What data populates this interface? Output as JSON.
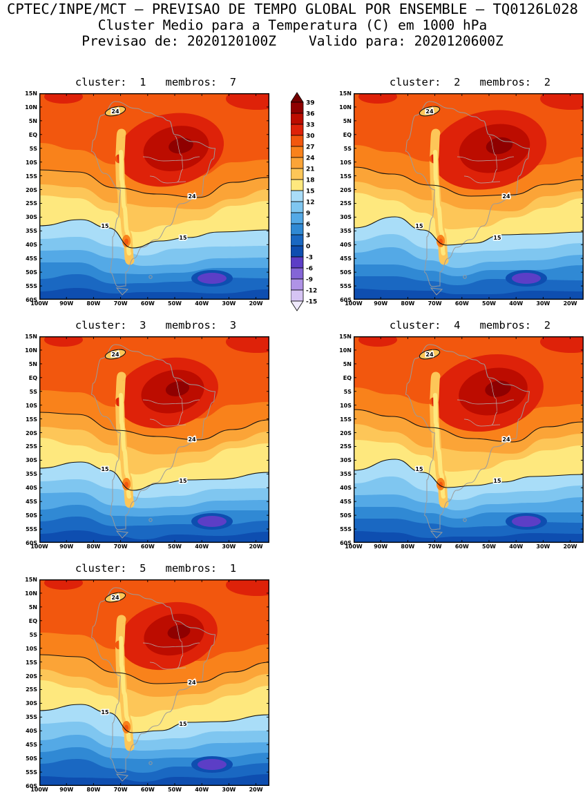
{
  "header": {
    "line1": "CPTEC/INPE/MCT — PREVISAO DE TEMPO GLOBAL POR ENSEMBLE — TQ0126L028",
    "line2": "Cluster Medio para a Temperatura (C) em 1000 hPa",
    "line3": "Previsao de: 2020120100Z    Valido para: 2020120600Z"
  },
  "panels": [
    {
      "title": "cluster:  1   membros:  7",
      "cluster": 1,
      "membros": 7
    },
    {
      "title": "cluster:  2   membros:  2",
      "cluster": 2,
      "membros": 2
    },
    {
      "title": "cluster:  3   membros:  3",
      "cluster": 3,
      "membros": 3
    },
    {
      "title": "cluster:  4   membros:  2",
      "cluster": 4,
      "membros": 2
    },
    {
      "title": "cluster:  5   membros:  1",
      "cluster": 5,
      "membros": 1
    }
  ],
  "axes": {
    "lat_ticks": [
      "15N",
      "10N",
      "5N",
      "EQ",
      "5S",
      "10S",
      "15S",
      "20S",
      "25S",
      "30S",
      "35S",
      "40S",
      "45S",
      "50S",
      "55S",
      "60S"
    ],
    "lon_ticks": [
      "100W",
      "90W",
      "80W",
      "70W",
      "60W",
      "50W",
      "40W",
      "30W",
      "20W"
    ]
  },
  "colorbar": {
    "levels": [
      "39",
      "36",
      "33",
      "30",
      "27",
      "24",
      "21",
      "18",
      "15",
      "12",
      "9",
      "6",
      "3",
      "0",
      "-3",
      "-6",
      "-9",
      "-12",
      "-15"
    ],
    "band_names": [
      "36-39",
      "33-36",
      "30-33",
      "27-30",
      "24-27",
      "21-24",
      "18-21",
      "15-18",
      "12-15",
      "9-12",
      "6-9",
      "3-6",
      "0-3",
      "-3-0",
      "-6--3",
      "-9--6",
      "-12--9",
      "-15--12"
    ],
    "cell_colors": [
      "#8F0000",
      "#BC0C00",
      "#DE2209",
      "#F2570E",
      "#F9821B",
      "#FBA437",
      "#FDC658",
      "#FEE87E",
      "#A9DDF8",
      "#7FC6F0",
      "#54A9E6",
      "#3089D4",
      "#1A68C2",
      "#0E4EB0",
      "#5C3EC6",
      "#8465D6",
      "#AF93E6",
      "#D6C4F4"
    ],
    "arrow_top_color": "#730000",
    "arrow_bottom_color": "#EFE9FC",
    "unit": "C"
  },
  "map": {
    "contour_labels": [
      "24",
      "15"
    ],
    "coast_color": "#9B9B9B"
  },
  "chart_data": {
    "type": "heatmap",
    "subtype": "filled-contour-map-grid",
    "title": "Cluster Medio para a Temperatura (C) em 1000 hPa",
    "model": "CPTEC/INPE/MCT Global Ensemble TQ0126L028",
    "variable": "temperature",
    "unit": "C",
    "level_hpa": 1000,
    "init_time": "2020120100Z",
    "valid_time": "2020120600Z",
    "region": "South America",
    "lon_range": [
      "100W",
      "15W"
    ],
    "lat_range": [
      "15N",
      "60S"
    ],
    "contour_interval_c": 3,
    "color_levels_c": [
      39,
      36,
      33,
      30,
      27,
      24,
      21,
      18,
      15,
      12,
      9,
      6,
      3,
      0,
      -3,
      -6,
      -9,
      -12,
      -15
    ],
    "labeled_contours_c": [
      24,
      15
    ],
    "legend_position": "right of first panel, vertical colorbar",
    "clusters": [
      {
        "cluster": 1,
        "members": 7
      },
      {
        "cluster": 2,
        "members": 2
      },
      {
        "cluster": 3,
        "members": 3
      },
      {
        "cluster": 4,
        "members": 2
      },
      {
        "cluster": 5,
        "members": 1
      }
    ],
    "zonal_profile_estimate": {
      "lat": [
        "15N",
        "10N",
        "5N",
        "EQ",
        "5S",
        "10S",
        "15S",
        "20S",
        "25S",
        "30S",
        "35S",
        "40S",
        "45S",
        "50S",
        "55S",
        "60S"
      ],
      "temp_c": [
        28,
        28,
        29,
        29,
        29,
        28,
        27,
        25,
        23,
        20,
        17,
        13,
        10,
        7,
        4,
        2
      ]
    },
    "notable_features": [
      "warm core >33C over central Brazil in all clusters",
      "cool Andes tongue 15-21C along west coast",
      "15C contour near 35S, 24C contour near 22S",
      "cold pocket below -3C near 55S in South Atlantic"
    ]
  }
}
